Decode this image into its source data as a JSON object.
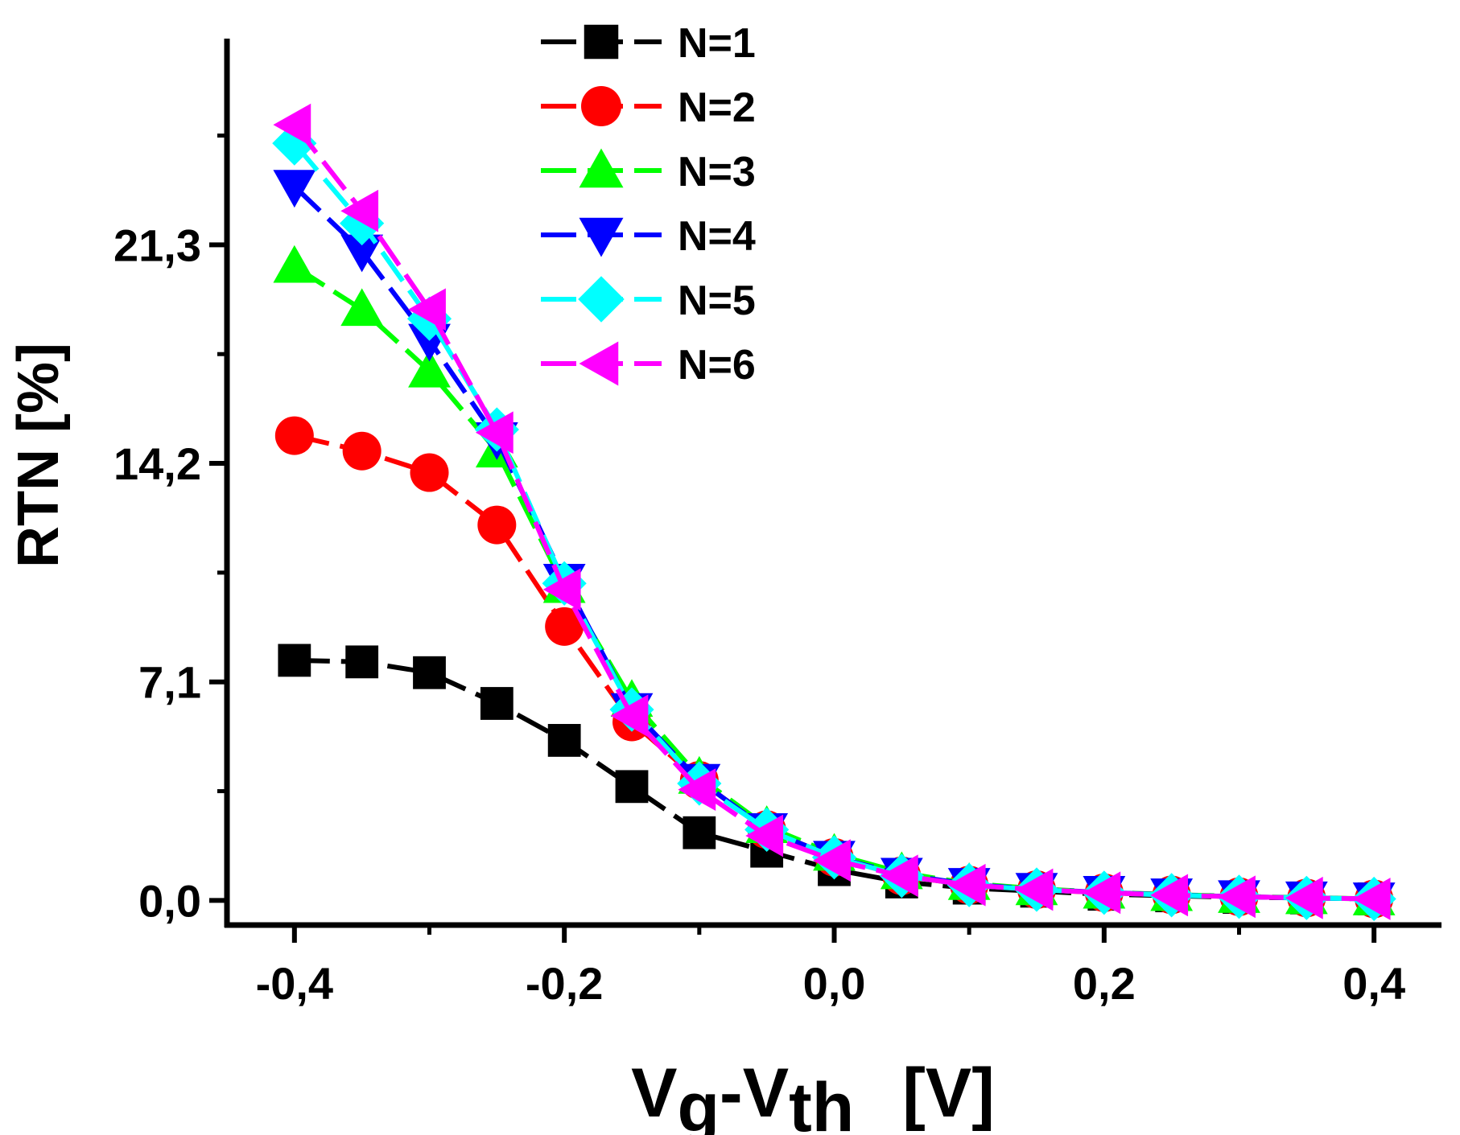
{
  "chart_data": {
    "type": "line",
    "title": "",
    "xlabel": {
      "main1": "V",
      "sub1": "g",
      "dash": "-",
      "main2": "V",
      "sub2": "th",
      "unit": "[V]"
    },
    "ylabel": "RTN  [%]",
    "xlim": [
      -0.45,
      0.45
    ],
    "ylim": [
      -0.8,
      28.0
    ],
    "xticks": [
      -0.4,
      -0.2,
      0.0,
      0.2,
      0.4
    ],
    "xtick_labels": [
      "-0,4",
      "-0,2",
      "0,0",
      "0,2",
      "0,4"
    ],
    "yticks": [
      0.0,
      7.1,
      14.2,
      21.3
    ],
    "ytick_labels": [
      "0,0",
      "7,1",
      "14,2",
      "21,3"
    ],
    "legend_position": "top-center",
    "x": [
      -0.4,
      -0.35,
      -0.3,
      -0.25,
      -0.2,
      -0.15,
      -0.1,
      -0.05,
      0.0,
      0.05,
      0.1,
      0.15,
      0.2,
      0.25,
      0.3,
      0.35,
      0.4
    ],
    "series": [
      {
        "name": "N=1",
        "color": "#000000",
        "marker": "square",
        "values": [
          7.8,
          7.75,
          7.4,
          6.4,
          5.2,
          3.7,
          2.2,
          1.6,
          1.0,
          0.6,
          0.4,
          0.3,
          0.2,
          0.15,
          0.1,
          0.08,
          0.05
        ]
      },
      {
        "name": "N=2",
        "color": "#ff0000",
        "marker": "circle",
        "values": [
          15.1,
          14.6,
          13.9,
          12.2,
          8.9,
          5.8,
          3.9,
          2.3,
          1.4,
          0.8,
          0.5,
          0.35,
          0.25,
          0.18,
          0.12,
          0.08,
          0.05
        ]
      },
      {
        "name": "N=3",
        "color": "#00ff00",
        "marker": "triangle-up",
        "values": [
          20.6,
          19.2,
          17.2,
          14.6,
          10.2,
          6.5,
          4.0,
          2.4,
          1.5,
          0.9,
          0.55,
          0.38,
          0.27,
          0.19,
          0.13,
          0.09,
          0.05
        ]
      },
      {
        "name": "N=4",
        "color": "#0000ff",
        "marker": "triangle-down",
        "values": [
          23.2,
          21.1,
          18.2,
          15.0,
          10.4,
          6.2,
          3.9,
          2.3,
          1.4,
          0.85,
          0.52,
          0.36,
          0.26,
          0.18,
          0.12,
          0.08,
          0.05
        ]
      },
      {
        "name": "N=5",
        "color": "#00ffff",
        "marker": "diamond",
        "values": [
          24.6,
          22.0,
          18.9,
          15.3,
          10.3,
          6.2,
          3.8,
          2.3,
          1.4,
          0.8,
          0.5,
          0.35,
          0.25,
          0.17,
          0.12,
          0.08,
          0.05
        ]
      },
      {
        "name": "N=6",
        "color": "#ff00ff",
        "marker": "triangle-left",
        "values": [
          25.2,
          22.4,
          19.2,
          15.2,
          10.1,
          6.0,
          3.6,
          2.1,
          1.3,
          0.8,
          0.5,
          0.35,
          0.25,
          0.17,
          0.12,
          0.08,
          0.05
        ]
      }
    ]
  }
}
